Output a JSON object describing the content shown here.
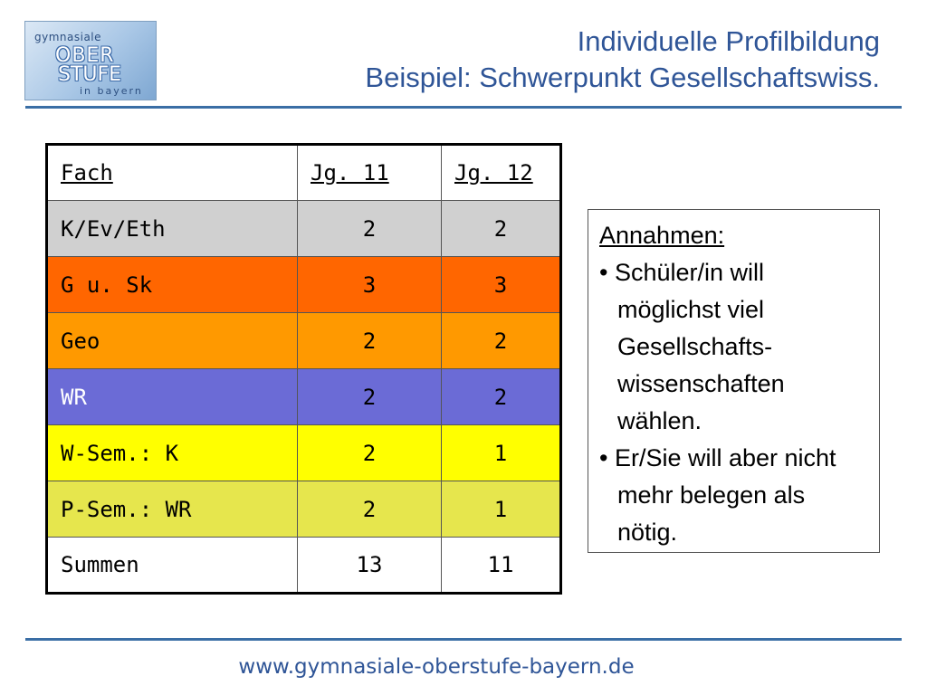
{
  "logo": {
    "line_top": "gymnasiale",
    "line1": "OBER",
    "line2": "STUFE",
    "line3": "in bayern"
  },
  "title": {
    "line1": "Individuelle Profilbildung",
    "line2": "Beispiel: Schwerpunkt Gesellschaftswiss."
  },
  "table": {
    "headers": [
      "Fach",
      "Jg. 11",
      "Jg. 12"
    ],
    "rows": [
      {
        "fach": "K/Ev/Eth",
        "jg11": "2",
        "jg12": "2",
        "color": "#d0d0d0"
      },
      {
        "fach": "G u. Sk",
        "jg11": "3",
        "jg12": "3",
        "color": "#ff6600"
      },
      {
        "fach": "Geo",
        "jg11": "2",
        "jg12": "2",
        "color": "#ff9900"
      },
      {
        "fach": "WR",
        "jg11": "2",
        "jg12": "2",
        "color": "#6b6bd6"
      },
      {
        "fach": "W-Sem.: K",
        "jg11": "2",
        "jg12": "1",
        "color": "#ffff00"
      },
      {
        "fach": "P-Sem.: WR",
        "jg11": "2",
        "jg12": "1",
        "color": "#e6e64d"
      },
      {
        "fach": "Summen",
        "jg11": "13",
        "jg12": "11",
        "color": "#ffffff"
      }
    ]
  },
  "note": {
    "heading": "Annahmen:",
    "items": [
      "• Schüler/in will möglichst viel Gesellschafts-wissenschaften wählen.",
      "• Er/Sie will aber nicht mehr belegen als nötig."
    ]
  },
  "footer": "www.gymnasiale-oberstufe-bayern.de",
  "colors": {
    "accent": "#2f5597",
    "rule": "#3a6ea5"
  }
}
